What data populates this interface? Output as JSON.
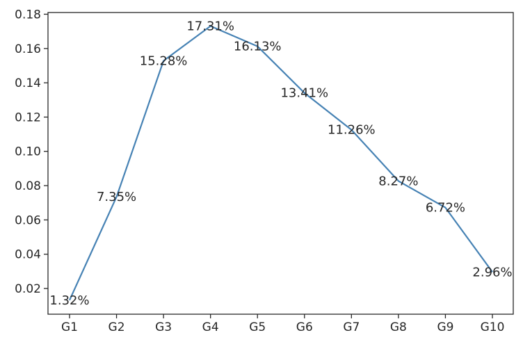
{
  "chart_data": {
    "type": "line",
    "title": "",
    "xlabel": "",
    "ylabel": "",
    "categories": [
      "G1",
      "G2",
      "G3",
      "G4",
      "G5",
      "G6",
      "G7",
      "G8",
      "G9",
      "G10"
    ],
    "series": [
      {
        "values": [
          0.0132,
          0.0735,
          0.1528,
          0.1731,
          0.1613,
          0.1341,
          0.1126,
          0.0827,
          0.0672,
          0.0296
        ],
        "labels": [
          "1.32%",
          "7.35%",
          "15.28%",
          "17.31%",
          "16.13%",
          "13.41%",
          "11.26%",
          "8.27%",
          "6.72%",
          "2.96%"
        ],
        "color": "#4682b4"
      }
    ],
    "ylim": [
      0.005,
      0.181
    ],
    "yticks": [
      0.02,
      0.04,
      0.06,
      0.08,
      0.1,
      0.12,
      0.14,
      0.16,
      0.18
    ],
    "ytick_labels": [
      "0.02",
      "0.04",
      "0.06",
      "0.08",
      "0.10",
      "0.12",
      "0.14",
      "0.16",
      "0.18"
    ],
    "grid": false,
    "legend": "none"
  }
}
